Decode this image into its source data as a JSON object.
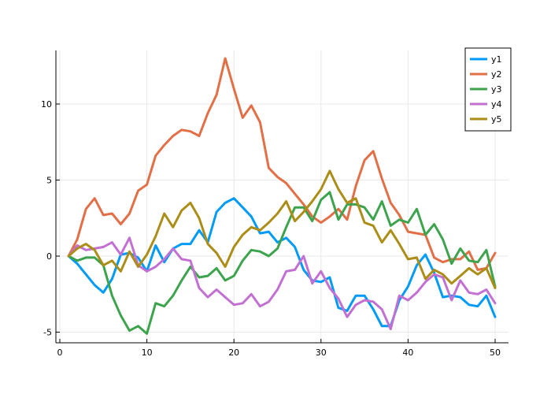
{
  "chart_data": {
    "type": "line",
    "title": "",
    "xlabel": "",
    "ylabel": "",
    "xlim": [
      0,
      51.5
    ],
    "ylim": [
      -5.6,
      13.8
    ],
    "xticks": [
      0,
      10,
      20,
      30,
      40,
      50
    ],
    "yticks": [
      -5,
      0,
      5,
      10
    ],
    "x_tick_labels": [
      "0",
      "10",
      "20",
      "30",
      "40",
      "50"
    ],
    "y_tick_labels": [
      "-5",
      "0",
      "5",
      "10"
    ],
    "grid": true,
    "legend_position": "top-right",
    "x": [
      1,
      2,
      3,
      4,
      5,
      6,
      7,
      8,
      9,
      10,
      11,
      12,
      13,
      14,
      15,
      16,
      17,
      18,
      19,
      20,
      21,
      22,
      23,
      24,
      25,
      26,
      27,
      28,
      29,
      30,
      31,
      32,
      33,
      34,
      35,
      36,
      37,
      38,
      39,
      40,
      41,
      42,
      43,
      44,
      45,
      46,
      47,
      48,
      49,
      50
    ],
    "series": [
      {
        "name": "y1",
        "color": "#009af9",
        "values": [
          0.0,
          -0.5,
          -1.2,
          -1.9,
          -2.4,
          -1.5,
          0.1,
          0.2,
          -0.1,
          -1.0,
          0.7,
          -0.4,
          0.5,
          0.8,
          0.8,
          1.7,
          0.9,
          2.9,
          3.5,
          3.8,
          3.2,
          2.6,
          1.5,
          1.6,
          0.9,
          1.2,
          0.6,
          -0.9,
          -1.6,
          -1.7,
          -1.4,
          -3.4,
          -3.6,
          -2.6,
          -2.6,
          -3.5,
          -4.6,
          -4.6,
          -2.9,
          -2.0,
          -0.6,
          0.1,
          -1.1,
          -2.7,
          -2.6,
          -2.7,
          -3.2,
          -3.3,
          -2.6,
          -4.0
        ]
      },
      {
        "name": "y2",
        "color": "#e26f46",
        "values": [
          0.0,
          1.1,
          3.1,
          3.8,
          2.7,
          2.8,
          2.1,
          2.8,
          4.3,
          4.7,
          6.6,
          7.3,
          7.9,
          8.3,
          8.2,
          7.9,
          9.4,
          10.6,
          13.0,
          11.0,
          9.1,
          9.9,
          8.8,
          5.8,
          5.2,
          4.8,
          4.1,
          3.4,
          2.6,
          2.2,
          2.6,
          3.1,
          2.4,
          4.6,
          6.3,
          6.9,
          5.1,
          3.5,
          2.7,
          1.6,
          1.5,
          1.4,
          -0.1,
          -0.4,
          -0.2,
          -0.2,
          0.3,
          -0.9,
          -0.8,
          0.2
        ]
      },
      {
        "name": "y3",
        "color": "#3da44d",
        "values": [
          0.0,
          -0.3,
          -0.1,
          -0.1,
          -0.6,
          -2.6,
          -3.9,
          -4.9,
          -4.6,
          -5.1,
          -3.1,
          -3.3,
          -2.6,
          -1.6,
          -0.7,
          -1.4,
          -1.3,
          -0.8,
          -1.6,
          -1.3,
          -0.3,
          0.4,
          0.3,
          0.0,
          0.5,
          1.9,
          3.2,
          3.2,
          2.3,
          3.7,
          4.2,
          2.4,
          3.4,
          3.4,
          3.2,
          2.4,
          3.6,
          2.0,
          2.4,
          2.2,
          3.1,
          1.4,
          2.1,
          1.1,
          -0.5,
          0.5,
          -0.3,
          -0.4,
          0.4,
          -2.0
        ]
      },
      {
        "name": "y4",
        "color": "#c271d2",
        "values": [
          0.0,
          0.7,
          0.4,
          0.5,
          0.6,
          0.9,
          0.1,
          1.2,
          -0.6,
          -1.0,
          -0.7,
          -0.2,
          0.5,
          -0.2,
          -0.3,
          -2.1,
          -2.7,
          -2.2,
          -2.7,
          -3.2,
          -3.1,
          -2.5,
          -3.3,
          -3.0,
          -2.2,
          -1.0,
          -0.9,
          0.0,
          -1.8,
          -1.0,
          -2.1,
          -2.8,
          -4.0,
          -3.2,
          -2.9,
          -3.0,
          -3.5,
          -4.8,
          -2.6,
          -2.9,
          -2.4,
          -1.7,
          -1.2,
          -1.4,
          -2.9,
          -1.6,
          -2.4,
          -2.5,
          -2.2,
          -3.1
        ]
      },
      {
        "name": "y5",
        "color": "#ac8d18",
        "values": [
          0.0,
          0.5,
          0.8,
          0.4,
          -0.6,
          -0.3,
          -1.0,
          0.3,
          -0.7,
          0.1,
          1.3,
          2.8,
          1.9,
          3.0,
          3.5,
          2.5,
          0.8,
          0.2,
          -0.7,
          0.6,
          1.4,
          1.9,
          1.7,
          2.2,
          2.8,
          3.6,
          2.3,
          2.9,
          3.6,
          4.4,
          5.6,
          4.4,
          3.5,
          3.8,
          2.2,
          2.0,
          0.9,
          1.7,
          0.8,
          -0.2,
          -0.1,
          -1.5,
          -0.9,
          -1.2,
          -1.8,
          -1.3,
          -0.8,
          -1.2,
          -0.8,
          -2.1
        ]
      }
    ]
  }
}
